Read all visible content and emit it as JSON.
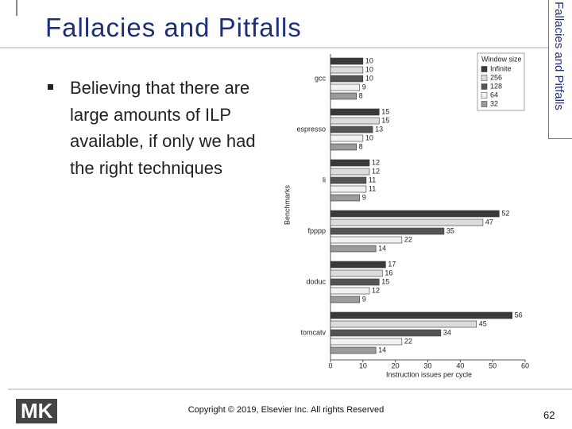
{
  "slide": {
    "title": "Fallacies and Pitfalls",
    "side_title": "Fallacies and Pitfalls",
    "bullet": "Believing that there are large amounts of ILP available, if only we had the right techniques",
    "footer": "Copyright © 2019, Elsevier Inc. All rights Reserved",
    "page_number": "62",
    "logo": "MK"
  },
  "chart_data": {
    "type": "hbar",
    "categories": [
      "gcc",
      "espresso",
      "li",
      "fpppp",
      "doduc",
      "tomcatv"
    ],
    "series": [
      {
        "name": "Infinite",
        "color": "#3a3a3a",
        "values": [
          10,
          15,
          12,
          52,
          17,
          56
        ]
      },
      {
        "name": "256",
        "color": "#dcdcdc",
        "values": [
          10,
          15,
          12,
          47,
          16,
          45
        ]
      },
      {
        "name": "128",
        "color": "#555555",
        "values": [
          10,
          13,
          11,
          35,
          15,
          34
        ]
      },
      {
        "name": "64",
        "color": "#f2f2f2",
        "values": [
          9,
          10,
          11,
          22,
          12,
          22
        ]
      },
      {
        "name": "32",
        "color": "#9a9a9a",
        "values": [
          8,
          8,
          9,
          14,
          9,
          14
        ]
      }
    ],
    "legend_title": "Window size",
    "xlabel": "Instruction issues per cycle",
    "ylabel": "Benchmarks",
    "xlim": [
      0,
      60
    ],
    "xticks": [
      0,
      10,
      20,
      30,
      40,
      50,
      60
    ]
  }
}
